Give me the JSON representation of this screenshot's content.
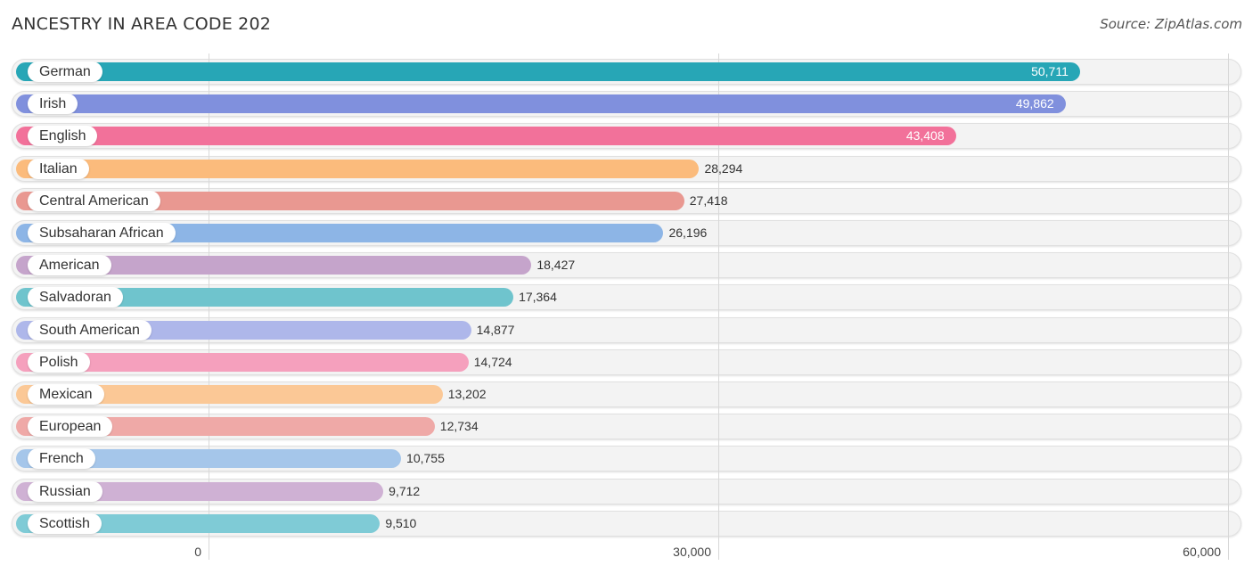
{
  "header": {
    "title": "ANCESTRY IN AREA CODE 202",
    "source": "Source: ZipAtlas.com"
  },
  "chart_data": {
    "type": "bar",
    "orientation": "horizontal",
    "title": "ANCESTRY IN AREA CODE 202",
    "xlabel": "",
    "ylabel": "",
    "xlim": [
      0,
      60000
    ],
    "grid": true,
    "ticks": [
      {
        "value": 0,
        "label": "0"
      },
      {
        "value": 30000,
        "label": "30,000"
      },
      {
        "value": 60000,
        "label": "60,000"
      }
    ],
    "categories": [
      "German",
      "Irish",
      "English",
      "Italian",
      "Central American",
      "Subsaharan African",
      "American",
      "Salvadoran",
      "South American",
      "Polish",
      "Mexican",
      "European",
      "French",
      "Russian",
      "Scottish"
    ],
    "values": [
      50711,
      49862,
      43408,
      28294,
      27418,
      26196,
      18427,
      17364,
      14877,
      14724,
      13202,
      12734,
      10755,
      9712,
      9510
    ],
    "value_labels": [
      "50,711",
      "49,862",
      "43,408",
      "28,294",
      "27,418",
      "26,196",
      "18,427",
      "17,364",
      "14,877",
      "14,724",
      "13,202",
      "12,734",
      "10,755",
      "9,712",
      "9,510"
    ],
    "colors": [
      "#27a6b6",
      "#8090dd",
      "#f2719a",
      "#fbbb7c",
      "#e99891",
      "#8db5e6",
      "#c5a4cb",
      "#6fc4cd",
      "#aeb7ea",
      "#f5a0bd",
      "#fbc896",
      "#efa9a7",
      "#a5c6ea",
      "#cfb1d4",
      "#7fcbd6"
    ]
  }
}
